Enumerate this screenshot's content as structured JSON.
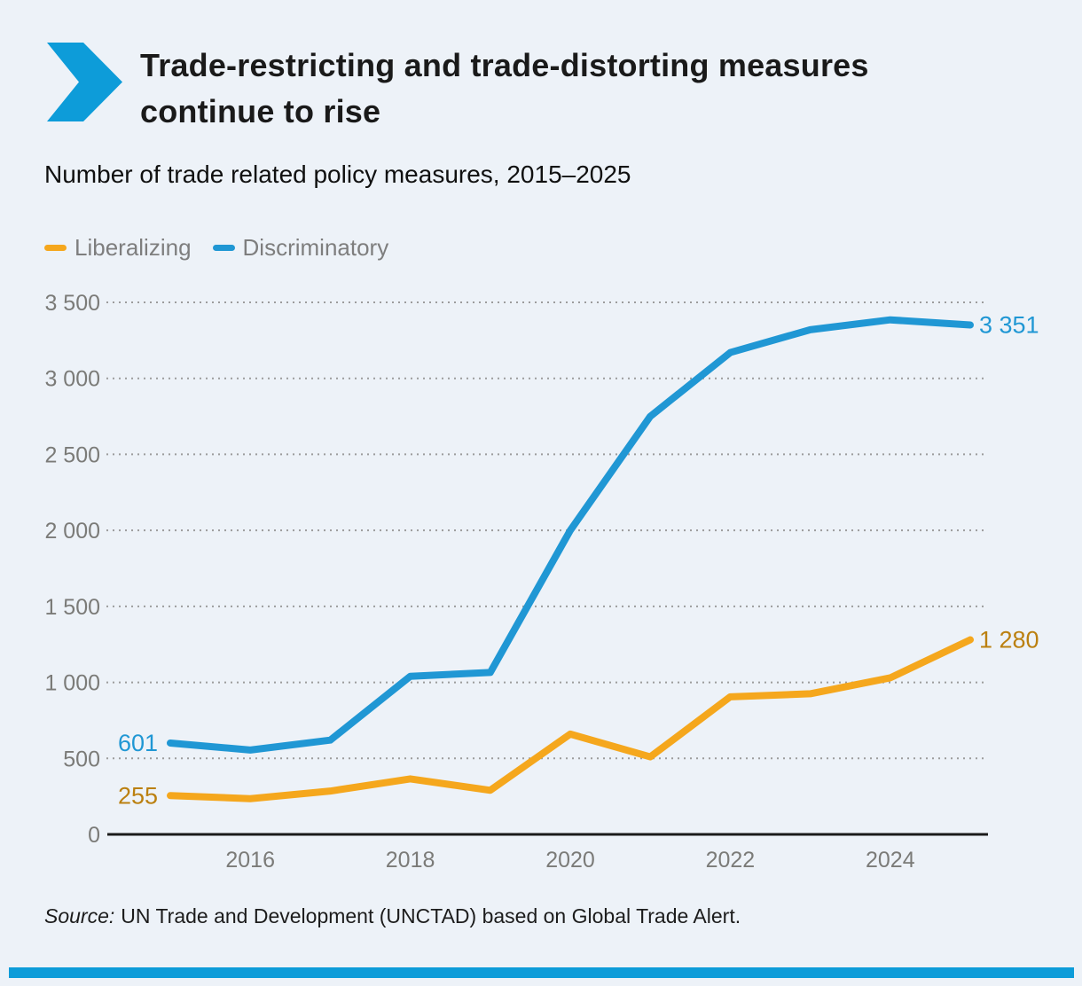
{
  "header": {
    "title_line1": "Trade-restricting and trade-distorting measures",
    "title_line2": "continue to rise"
  },
  "subtitle": "Number of trade related policy measures, 2015–2025",
  "legend": {
    "items": [
      {
        "label": "Liberalizing",
        "color": "#f5a71d"
      },
      {
        "label": "Discriminatory",
        "color": "#2097d4"
      }
    ]
  },
  "source": {
    "prefix": "Source:",
    "text": "UN Trade and Development (UNCTAD) based on Global Trade Alert."
  },
  "footer": {
    "bar_color": "#0d9cd9",
    "chevron_color": "#0d9cd9"
  },
  "chart_data": {
    "type": "line",
    "title": "Number of trade related policy measures, 2015–2025",
    "x": [
      2015,
      2016,
      2017,
      2018,
      2019,
      2020,
      2021,
      2022,
      2023,
      2024,
      2025
    ],
    "x_ticks": [
      {
        "value": 2016,
        "label": "2016"
      },
      {
        "value": 2018,
        "label": "2018"
      },
      {
        "value": 2020,
        "label": "2020"
      },
      {
        "value": 2022,
        "label": "2022"
      },
      {
        "value": 2024,
        "label": "2024"
      }
    ],
    "y_ticks": [
      {
        "value": 0,
        "label": "0"
      },
      {
        "value": 500,
        "label": "500"
      },
      {
        "value": 1000,
        "label": "1 000"
      },
      {
        "value": 1500,
        "label": "1 500"
      },
      {
        "value": 2000,
        "label": "2 000"
      },
      {
        "value": 2500,
        "label": "2 500"
      },
      {
        "value": 3000,
        "label": "3 000"
      },
      {
        "value": 3500,
        "label": "3 500"
      }
    ],
    "ylim": [
      0,
      3500
    ],
    "grid": "horizontal-dotted",
    "legend_position": "top-left",
    "series": [
      {
        "name": "Liberalizing",
        "color": "#f5a71d",
        "label_color": "#bb8010",
        "values": [
          255,
          235,
          285,
          365,
          290,
          660,
          510,
          905,
          925,
          1030,
          1280
        ],
        "first_point_label": "255",
        "last_point_label": "1 280"
      },
      {
        "name": "Discriminatory",
        "color": "#2097d4",
        "label_color": "#2097d4",
        "values": [
          601,
          555,
          620,
          1040,
          1065,
          2000,
          2750,
          3170,
          3320,
          3385,
          3351
        ],
        "first_point_label": "601",
        "last_point_label": "3 351"
      }
    ]
  }
}
